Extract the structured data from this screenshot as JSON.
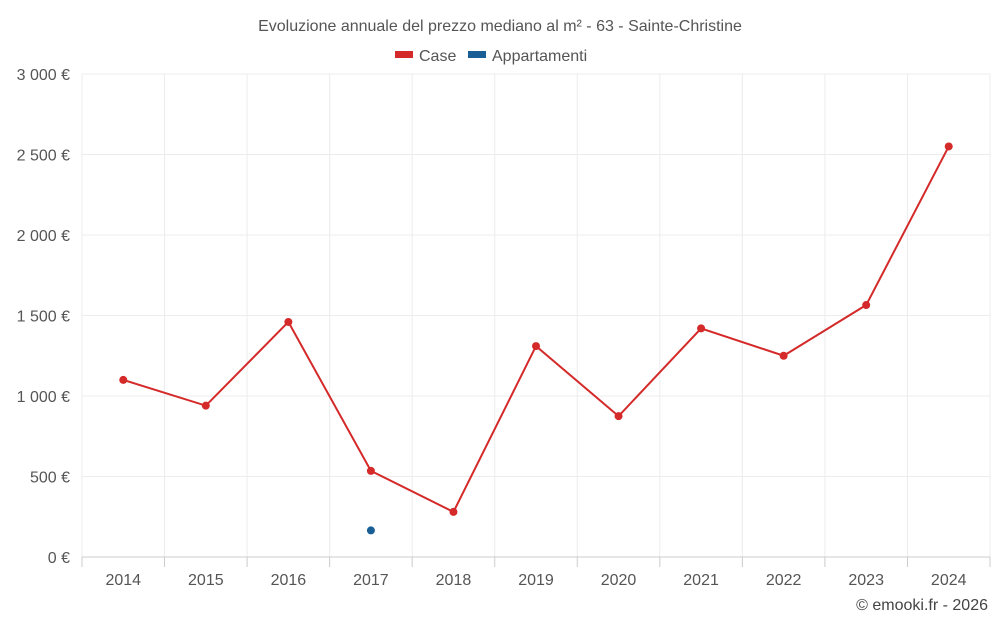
{
  "chart_data": {
    "type": "line",
    "title": "Evoluzione annuale del prezzo mediano al m² - 63 - Sainte-Christine",
    "categories": [
      "2014",
      "2015",
      "2016",
      "2017",
      "2018",
      "2019",
      "2020",
      "2021",
      "2022",
      "2023",
      "2024"
    ],
    "ylim": [
      0,
      3000
    ],
    "yticks": [
      0,
      500,
      1000,
      1500,
      2000,
      2500,
      3000
    ],
    "ytick_labels": [
      "0 €",
      "500 €",
      "1 000 €",
      "1 500 €",
      "2 000 €",
      "2 500 €",
      "3 000 €"
    ],
    "grid": true,
    "legend_position": "top-center",
    "series": [
      {
        "name": "Case",
        "color": "#d42a2a",
        "values": [
          1100,
          940,
          1460,
          535,
          280,
          1310,
          875,
          1420,
          1250,
          1565,
          2550
        ]
      },
      {
        "name": "Appartamenti",
        "color": "#1a5e96",
        "values": [
          null,
          null,
          null,
          165,
          null,
          null,
          null,
          null,
          null,
          null,
          null
        ]
      }
    ],
    "credit": "© emooki.fr - 2026"
  }
}
